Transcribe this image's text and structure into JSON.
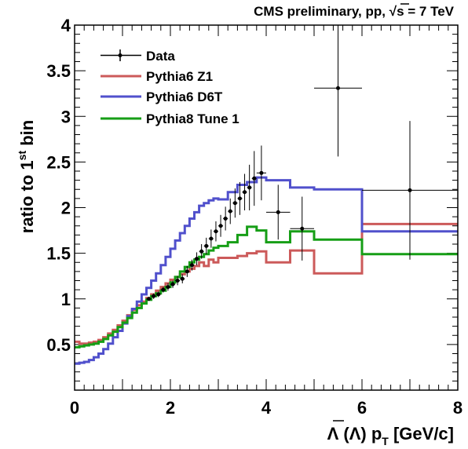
{
  "header": {
    "prefix": "CMS preliminary, pp, ",
    "sqrt_symbol": "√",
    "energy": "s = 7 TeV"
  },
  "chart_data": {
    "type": "line",
    "title": "CMS preliminary, pp, √s = 7 TeV",
    "xlabel": "Λ (Λ̅) p_T [GeV/c]",
    "ylabel": "ratio to 1^st bin",
    "xlabel_parts": {
      "main": "Λ (",
      "bar": "Λ",
      "after": ") p",
      "sub": "T",
      "units": " [GeV/c]"
    },
    "ylabel_parts": {
      "main": "ratio to 1",
      "sup": "st",
      "end": " bin"
    },
    "xlim": [
      0,
      8
    ],
    "ylim": [
      0,
      4
    ],
    "x_ticks": [
      "0",
      "2",
      "4",
      "6",
      "8"
    ],
    "y_ticks": [
      "0.5",
      "1",
      "1.5",
      "2",
      "2.5",
      "3",
      "3.5",
      "4"
    ],
    "legend_position": "top-left",
    "legend": [
      "Data",
      "Pythia6 Z1",
      "Pythia6 D6T",
      "Pythia8 Tune 1"
    ],
    "colors": {
      "data": "#000000",
      "z1": "#cc5a5a",
      "d6t": "#5050cc",
      "p8": "#169e16"
    },
    "series": [
      {
        "name": "Data",
        "style": "points",
        "points": [
          {
            "x": 1.55,
            "y": 1.0,
            "xerr": 0.05,
            "yerr": 0.02
          },
          {
            "x": 1.65,
            "y": 1.03,
            "xerr": 0.05,
            "yerr": 0.03
          },
          {
            "x": 1.75,
            "y": 1.05,
            "xerr": 0.05,
            "yerr": 0.03
          },
          {
            "x": 1.85,
            "y": 1.1,
            "xerr": 0.05,
            "yerr": 0.03
          },
          {
            "x": 1.95,
            "y": 1.13,
            "xerr": 0.05,
            "yerr": 0.04
          },
          {
            "x": 2.05,
            "y": 1.16,
            "xerr": 0.05,
            "yerr": 0.04
          },
          {
            "x": 2.15,
            "y": 1.2,
            "xerr": 0.05,
            "yerr": 0.05
          },
          {
            "x": 2.25,
            "y": 1.22,
            "xerr": 0.05,
            "yerr": 0.05
          },
          {
            "x": 2.35,
            "y": 1.3,
            "xerr": 0.05,
            "yerr": 0.06
          },
          {
            "x": 2.45,
            "y": 1.37,
            "xerr": 0.05,
            "yerr": 0.06
          },
          {
            "x": 2.55,
            "y": 1.44,
            "xerr": 0.05,
            "yerr": 0.07
          },
          {
            "x": 2.65,
            "y": 1.52,
            "xerr": 0.05,
            "yerr": 0.08
          },
          {
            "x": 2.75,
            "y": 1.58,
            "xerr": 0.05,
            "yerr": 0.09
          },
          {
            "x": 2.85,
            "y": 1.66,
            "xerr": 0.05,
            "yerr": 0.1
          },
          {
            "x": 2.95,
            "y": 1.74,
            "xerr": 0.05,
            "yerr": 0.11
          },
          {
            "x": 3.05,
            "y": 1.8,
            "xerr": 0.05,
            "yerr": 0.12
          },
          {
            "x": 3.15,
            "y": 1.88,
            "xerr": 0.05,
            "yerr": 0.13
          },
          {
            "x": 3.25,
            "y": 1.96,
            "xerr": 0.05,
            "yerr": 0.14
          },
          {
            "x": 3.35,
            "y": 2.05,
            "xerr": 0.05,
            "yerr": 0.16
          },
          {
            "x": 3.45,
            "y": 2.1,
            "xerr": 0.05,
            "yerr": 0.18
          },
          {
            "x": 3.55,
            "y": 2.17,
            "xerr": 0.05,
            "yerr": 0.2
          },
          {
            "x": 3.65,
            "y": 2.22,
            "xerr": 0.05,
            "yerr": 0.25
          },
          {
            "x": 3.75,
            "y": 2.32,
            "xerr": 0.05,
            "yerr": 0.3
          },
          {
            "x": 3.9,
            "y": 2.38,
            "xerr": 0.1,
            "yerr": 0.3
          },
          {
            "x": 4.25,
            "y": 1.95,
            "xerr": 0.25,
            "yerr": 0.3
          },
          {
            "x": 4.75,
            "y": 1.77,
            "xerr": 0.25,
            "yerr": 0.35
          },
          {
            "x": 5.5,
            "y": 3.31,
            "xerr": 0.5,
            "yerr": 0.75
          },
          {
            "x": 7.0,
            "y": 2.19,
            "xerr": 1.0,
            "yerr": 0.76
          }
        ]
      },
      {
        "name": "Pythia6 Z1",
        "style": "step",
        "color_key": "z1",
        "edges": [
          0,
          0.1,
          0.2,
          0.3,
          0.4,
          0.5,
          0.6,
          0.7,
          0.8,
          0.9,
          1.0,
          1.1,
          1.2,
          1.3,
          1.4,
          1.5,
          1.6,
          1.7,
          1.8,
          1.9,
          2.0,
          2.1,
          2.2,
          2.3,
          2.4,
          2.5,
          2.6,
          2.7,
          2.8,
          2.9,
          3.0,
          3.2,
          3.4,
          3.6,
          3.8,
          4.0,
          4.5,
          5.0,
          6.0,
          8.0
        ],
        "values": [
          0.53,
          0.51,
          0.51,
          0.52,
          0.53,
          0.55,
          0.58,
          0.62,
          0.66,
          0.71,
          0.76,
          0.82,
          0.88,
          0.93,
          0.97,
          1.01,
          1.05,
          1.09,
          1.13,
          1.17,
          1.21,
          1.24,
          1.27,
          1.3,
          1.33,
          1.36,
          1.4,
          1.36,
          1.43,
          1.4,
          1.45,
          1.45,
          1.47,
          1.5,
          1.52,
          1.4,
          1.53,
          1.28,
          1.82
        ]
      },
      {
        "name": "Pythia6 D6T",
        "style": "step",
        "color_key": "d6t",
        "edges": [
          0,
          0.1,
          0.2,
          0.3,
          0.4,
          0.5,
          0.6,
          0.7,
          0.8,
          0.9,
          1.0,
          1.1,
          1.2,
          1.3,
          1.4,
          1.5,
          1.6,
          1.7,
          1.8,
          1.9,
          2.0,
          2.1,
          2.2,
          2.3,
          2.4,
          2.5,
          2.6,
          2.7,
          2.8,
          2.9,
          3.0,
          3.2,
          3.4,
          3.6,
          3.8,
          4.0,
          4.5,
          5.0,
          6.0,
          8.0
        ],
        "values": [
          0.29,
          0.3,
          0.31,
          0.33,
          0.36,
          0.4,
          0.45,
          0.51,
          0.58,
          0.65,
          0.73,
          0.81,
          0.89,
          0.97,
          1.05,
          1.12,
          1.2,
          1.28,
          1.37,
          1.46,
          1.55,
          1.64,
          1.72,
          1.8,
          1.88,
          1.95,
          2.02,
          2.05,
          2.08,
          2.1,
          2.09,
          2.17,
          2.25,
          2.28,
          2.33,
          2.3,
          2.22,
          2.2,
          1.74
        ]
      },
      {
        "name": "Pythia8 Tune 1",
        "style": "step",
        "color_key": "p8",
        "edges": [
          0,
          0.1,
          0.2,
          0.3,
          0.4,
          0.5,
          0.6,
          0.7,
          0.8,
          0.9,
          1.0,
          1.1,
          1.2,
          1.3,
          1.4,
          1.5,
          1.6,
          1.7,
          1.8,
          1.9,
          2.0,
          2.1,
          2.2,
          2.3,
          2.4,
          2.5,
          2.6,
          2.7,
          2.8,
          2.9,
          3.0,
          3.2,
          3.4,
          3.6,
          3.8,
          4.0,
          4.5,
          5.0,
          6.0,
          8.0
        ],
        "values": [
          0.47,
          0.48,
          0.49,
          0.5,
          0.51,
          0.53,
          0.56,
          0.6,
          0.64,
          0.69,
          0.74,
          0.79,
          0.85,
          0.9,
          0.95,
          0.99,
          1.03,
          1.06,
          1.09,
          1.13,
          1.18,
          1.24,
          1.3,
          1.35,
          1.4,
          1.43,
          1.46,
          1.49,
          1.53,
          1.56,
          1.58,
          1.62,
          1.7,
          1.79,
          1.75,
          1.62,
          1.74,
          1.65,
          1.49
        ]
      }
    ]
  }
}
